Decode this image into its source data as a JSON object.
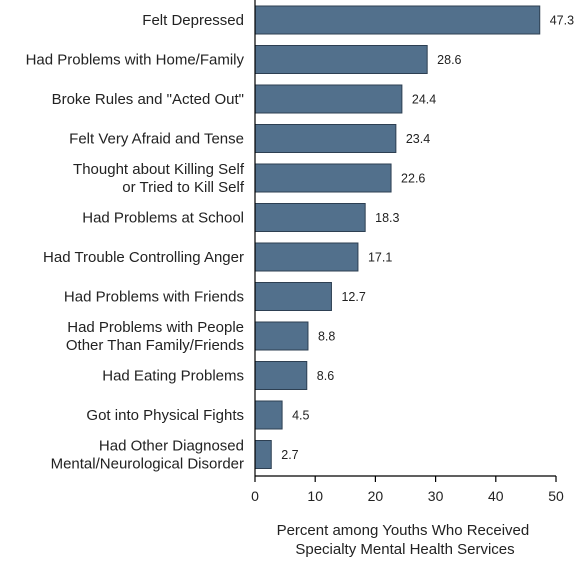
{
  "chart_data": {
    "type": "bar",
    "orientation": "horizontal",
    "categories": [
      [
        "Felt Depressed"
      ],
      [
        "Had Problems with Home/Family"
      ],
      [
        "Broke Rules and \"Acted Out\""
      ],
      [
        "Felt Very Afraid and Tense"
      ],
      [
        "Thought about Killing Self",
        "or Tried to Kill Self"
      ],
      [
        "Had Problems at School"
      ],
      [
        "Had Trouble Controlling Anger"
      ],
      [
        "Had Problems with Friends"
      ],
      [
        "Had Problems with People",
        "Other Than Family/Friends"
      ],
      [
        "Had Eating Problems"
      ],
      [
        "Got into Physical Fights"
      ],
      [
        "Had Other Diagnosed",
        "Mental/Neurological Disorder"
      ]
    ],
    "values": [
      47.3,
      28.6,
      24.4,
      23.4,
      22.6,
      18.3,
      17.1,
      12.7,
      8.8,
      8.6,
      4.5,
      2.7
    ],
    "value_labels": [
      "47.3",
      "28.6",
      "24.4",
      "23.4",
      "22.6",
      "18.3",
      "17.1",
      "12.7",
      "8.8",
      "8.6",
      "4.5",
      "2.7"
    ],
    "xlabel": [
      "Percent among Youths Who Received",
      "Specialty Mental Health Services"
    ],
    "ylabel": "",
    "xlim": [
      0,
      50
    ],
    "xticks": [
      0,
      10,
      20,
      30,
      40,
      50
    ],
    "grid": false,
    "colors": {
      "bar": "#52708c",
      "bar_edge": "#2d3f52",
      "axis": "#000000"
    }
  }
}
